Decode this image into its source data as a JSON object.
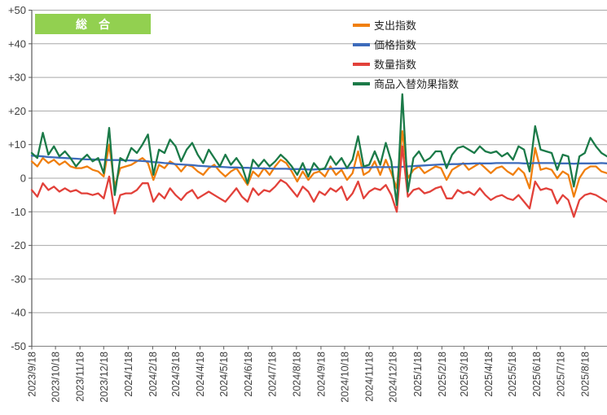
{
  "page": {
    "background": "#FFFFFF"
  },
  "overlay_label": {
    "text": "総　合",
    "background": "#92D050",
    "text_color": "#FFFFFF"
  },
  "colors": {
    "grid": "#A8A8A8",
    "axis": "#595959",
    "axis_bottom": "#808080",
    "text": "#404040"
  },
  "y_axis": {
    "min": -50,
    "max": 50,
    "step": 10,
    "labels": [
      "+50",
      "+40",
      "+30",
      "+20",
      "+10",
      "0",
      "-10",
      "-20",
      "-30",
      "-40",
      "-50"
    ]
  },
  "x_axis": {
    "ticks": [
      {
        "label": "2023/9/18",
        "day": 0
      },
      {
        "label": "2023/10/18",
        "day": 30
      },
      {
        "label": "2023/11/18",
        "day": 61
      },
      {
        "label": "2023/12/18",
        "day": 91
      },
      {
        "label": "2024/1/18",
        "day": 122
      },
      {
        "label": "2024/2/18",
        "day": 153
      },
      {
        "label": "2024/3/18",
        "day": 182
      },
      {
        "label": "2024/4/18",
        "day": 213
      },
      {
        "label": "2024/5/18",
        "day": 243
      },
      {
        "label": "2024/6/18",
        "day": 274
      },
      {
        "label": "2024/7/18",
        "day": 304
      },
      {
        "label": "2024/8/18",
        "day": 335
      },
      {
        "label": "2024/9/18",
        "day": 366
      },
      {
        "label": "2024/10/18",
        "day": 396
      },
      {
        "label": "2024/11/18",
        "day": 427
      },
      {
        "label": "2024/12/18",
        "day": 457
      },
      {
        "label": "2025/1/18",
        "day": 488
      },
      {
        "label": "2025/2/18",
        "day": 519
      },
      {
        "label": "2025/3/18",
        "day": 547
      },
      {
        "label": "2025/4/18",
        "day": 578
      },
      {
        "label": "2025/5/18",
        "day": 608
      },
      {
        "label": "2025/6/18",
        "day": 639
      },
      {
        "label": "2025/7/18",
        "day": 669
      },
      {
        "label": "2025/8/18",
        "day": 700
      }
    ]
  },
  "chart_data": {
    "type": "line",
    "title": "総合",
    "x_start": "2023/9/18",
    "x_interval": "weekly",
    "x_points": 105,
    "ylim": [
      -50,
      50
    ],
    "grid": true,
    "legend_position": "top-center",
    "series": [
      {
        "name": "支出指数",
        "color": "#F07F0E",
        "values": [
          5,
          3.5,
          6,
          4.5,
          5.5,
          4,
          5,
          3.5,
          3,
          3,
          3.5,
          2.5,
          2,
          0.5,
          10,
          -2.5,
          3,
          3.5,
          4,
          5,
          6,
          4.5,
          -0.5,
          4,
          3,
          5,
          4,
          2,
          4,
          3.5,
          2,
          1,
          3,
          4,
          2,
          0.5,
          2,
          3,
          0.5,
          -2,
          2,
          0.5,
          3,
          1,
          3.5,
          5.5,
          4.5,
          2,
          -1,
          2,
          -0.5,
          1.5,
          2,
          0.5,
          3.5,
          1,
          2.5,
          -0.5,
          1.5,
          8,
          1,
          2,
          5,
          1,
          5.5,
          1.5,
          -3,
          14,
          0,
          2.5,
          3.5,
          1.5,
          2.5,
          3.5,
          3,
          -0.5,
          2.5,
          3.5,
          4.5,
          2.5,
          3.5,
          4.5,
          3,
          1.5,
          3,
          3.5,
          2,
          1,
          3,
          1.5,
          -3,
          9,
          2.5,
          3,
          2.5,
          0,
          2,
          1,
          -5.5,
          0,
          2.5,
          3.5,
          3.5,
          2,
          1.5
        ]
      },
      {
        "name": "価格指数",
        "color": "#3D6BBB",
        "values": [
          6.7,
          6.6,
          6.5,
          6.3,
          6.2,
          6.1,
          6.0,
          5.9,
          5.8,
          5.7,
          5.6,
          5.6,
          5.5,
          5.5,
          5.4,
          5.4,
          5.4,
          5.3,
          5.3,
          5.2,
          5.1,
          5.0,
          4.8,
          4.7,
          4.5,
          4.4,
          4.2,
          4.1,
          4.0,
          3.9,
          3.7,
          3.6,
          3.5,
          3.4,
          3.4,
          3.3,
          3.2,
          3.2,
          3.1,
          3.1,
          3.0,
          3.0,
          2.9,
          2.9,
          2.8,
          2.8,
          2.8,
          2.7,
          2.7,
          2.7,
          2.6,
          2.6,
          2.7,
          2.7,
          2.8,
          2.9,
          2.9,
          3.0,
          3.1,
          3.1,
          3.2,
          3.2,
          3.3,
          3.3,
          3.3,
          3.3,
          3.3,
          3.4,
          3.5,
          3.6,
          3.7,
          3.8,
          3.9,
          4.0,
          4.1,
          4.1,
          4.2,
          4.2,
          4.3,
          4.3,
          4.4,
          4.4,
          4.4,
          4.4,
          4.5,
          4.5,
          4.5,
          4.5,
          4.5,
          4.4,
          4.4,
          4.5,
          4.5,
          4.5,
          4.5,
          4.4,
          4.4,
          4.4,
          4.3,
          4.4,
          4.4,
          4.4,
          4.4,
          4.5,
          4.4
        ]
      },
      {
        "name": "数量指数",
        "color": "#E2413A",
        "values": [
          -3.5,
          -5.5,
          -1.5,
          -3.5,
          -2.5,
          -4,
          -3,
          -4,
          -3.5,
          -4.5,
          -4.5,
          -5,
          -4.5,
          -6,
          0.5,
          -10.5,
          -5,
          -4.5,
          -4.5,
          -3.5,
          -1.5,
          -1.5,
          -7,
          -4.5,
          -6,
          -3,
          -5,
          -6.5,
          -4.5,
          -3.5,
          -6,
          -5,
          -4,
          -5,
          -6,
          -7,
          -5,
          -3,
          -5.5,
          -7,
          -3,
          -5,
          -3.5,
          -4,
          -2.5,
          -0.5,
          -1.5,
          -3.5,
          -5.5,
          -2.5,
          -4,
          -7,
          -4,
          -5,
          -3,
          -4,
          -2.5,
          -6.5,
          -4.5,
          -1,
          -6,
          -4,
          -3,
          -3.5,
          -2,
          -5,
          -10,
          9.5,
          -5.5,
          -3.5,
          -3,
          -4.5,
          -4,
          -3,
          -2.5,
          -6,
          -6,
          -3.5,
          -4.5,
          -4,
          -5,
          -3,
          -5,
          -6.5,
          -5.5,
          -5,
          -6,
          -6.5,
          -5,
          -7,
          -9,
          -1,
          -3.5,
          -3,
          -3.5,
          -7.5,
          -5,
          -6.5,
          -11.5,
          -6.5,
          -5,
          -4.5,
          -5,
          -6,
          -7
        ]
      },
      {
        "name": "商品入替効果指数",
        "color": "#1B7A48",
        "values": [
          7.5,
          6,
          13.5,
          7,
          9.5,
          6.5,
          8,
          6,
          3.5,
          5.5,
          7,
          5,
          6,
          1.5,
          15,
          -5,
          6,
          5,
          9,
          7.5,
          10,
          13,
          1,
          8.5,
          7.5,
          11.5,
          9.5,
          5,
          8.5,
          10.5,
          7,
          4.5,
          8.5,
          6,
          3.5,
          7,
          4,
          6,
          3.5,
          -1.5,
          5.5,
          3.5,
          5.5,
          3.5,
          5,
          7,
          5.5,
          3.5,
          1,
          4.5,
          0.5,
          4.5,
          2.5,
          3,
          6.5,
          4,
          6,
          3,
          5.5,
          12.5,
          3.5,
          4,
          8,
          4,
          10.5,
          5,
          -8,
          25,
          -4,
          6,
          8,
          5,
          6,
          8,
          8,
          3,
          7,
          9,
          9.5,
          8.5,
          7.5,
          9.5,
          8,
          7.5,
          8,
          6.5,
          7.5,
          5.5,
          9.5,
          8.5,
          2,
          15.5,
          8.5,
          8,
          7.5,
          2.5,
          7,
          6.5,
          -2.5,
          6.5,
          7.5,
          12,
          9.5,
          7.5,
          6.5
        ]
      }
    ]
  }
}
